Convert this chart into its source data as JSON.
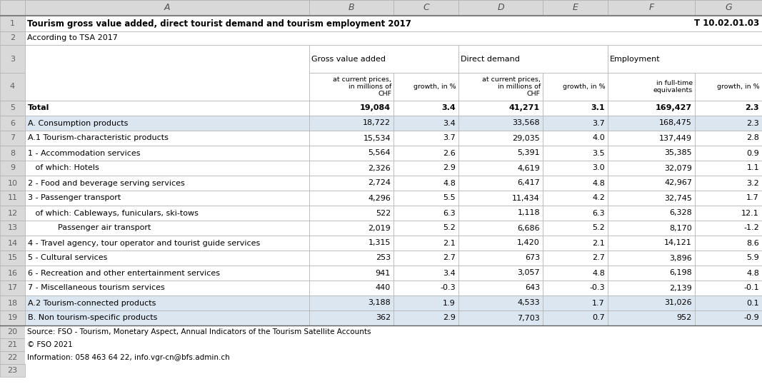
{
  "title": "Tourism gross value added, direct tourist demand and tourism employment 2017",
  "title_ref": "T 10.02.01.03",
  "subtitle": "According to TSA 2017",
  "row_numbers": [
    "1",
    "2",
    "3",
    "4",
    "5",
    "6",
    "7",
    "8",
    "9",
    "10",
    "11",
    "12",
    "13",
    "14",
    "15",
    "16",
    "17",
    "18",
    "19",
    "20",
    "21",
    "22",
    "23"
  ],
  "col_letters": [
    "A",
    "B",
    "C",
    "D",
    "E",
    "F",
    "G"
  ],
  "row_labels": [
    "Total",
    "A. Consumption products",
    "A.1 Tourism-characteristic products",
    "1 - Accommodation services",
    "   of which: Hotels",
    "2 - Food and beverage serving services",
    "3 - Passenger transport",
    "   of which: Cableways, funiculars, ski-tows",
    "            Passenger air transport",
    "4 - Travel agency, tour operator and tourist guide services",
    "5 - Cultural services",
    "6 - Recreation and other entertainment services",
    "7 - Miscellaneous tourism services",
    "A.2 Tourism-connected products",
    "B. Non tourism-specific products"
  ],
  "col_B": [
    "19,084",
    "18,722",
    "15,534",
    "5,564",
    "2,326",
    "2,724",
    "4,296",
    "522",
    "2,019",
    "1,315",
    "253",
    "941",
    "440",
    "3,188",
    "362"
  ],
  "col_C": [
    "3.4",
    "3.4",
    "3.7",
    "2.6",
    "2.9",
    "4.8",
    "5.5",
    "6.3",
    "5.2",
    "2.1",
    "2.7",
    "3.4",
    "-0.3",
    "1.9",
    "2.9"
  ],
  "col_D": [
    "41,271",
    "33,568",
    "29,035",
    "5,391",
    "4,619",
    "6,417",
    "11,434",
    "1,118",
    "6,686",
    "1,420",
    "673",
    "3,057",
    "643",
    "4,533",
    "7,703"
  ],
  "col_E": [
    "3.1",
    "3.7",
    "4.0",
    "3.5",
    "3.0",
    "4.8",
    "4.2",
    "6.3",
    "5.2",
    "2.1",
    "2.7",
    "4.8",
    "-0.3",
    "1.7",
    "0.7"
  ],
  "col_F": [
    "169,427",
    "168,475",
    "137,449",
    "35,385",
    "32,079",
    "42,967",
    "32,745",
    "6,328",
    "8,170",
    "14,121",
    "3,896",
    "6,198",
    "2,139",
    "31,026",
    "952"
  ],
  "col_G": [
    "2.3",
    "2.3",
    "2.8",
    "0.9",
    "1.1",
    "3.2",
    "1.7",
    "12.1",
    "-1.2",
    "8.6",
    "5.9",
    "4.8",
    "-0.1",
    "0.1",
    "-0.9"
  ],
  "blue_bg_rows_data_idx": [
    1,
    13,
    14
  ],
  "footer_lines": [
    "Source: FSO - Tourism, Monetary Aspect, Annual Indicators of the Tourism Satellite Accounts",
    "© FSO 2021",
    "Information: 058 463 64 22, info.vgr-cn@bfs.admin.ch"
  ],
  "bg_blue": "#dce6f1",
  "bg_white": "#ffffff",
  "bg_gray_header": "#d9d9d9",
  "border_color": "#b0b0b0",
  "text_gray": "#808080",
  "text_black": "#000000"
}
